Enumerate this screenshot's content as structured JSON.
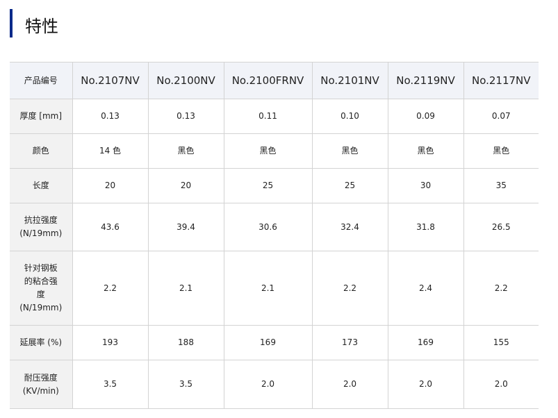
{
  "section": {
    "title": "特性"
  },
  "table": {
    "header": [
      "产品编号",
      "No.2107NV",
      "No.2100NV",
      "No.2100FRNV",
      "No.2101NV",
      "No.2119NV",
      "No.2117NV"
    ],
    "rows": [
      {
        "label": [
          "厚度 [mm]"
        ],
        "values": [
          "0.13",
          "0.13",
          "0.11",
          "0.10",
          "0.09",
          "0.07"
        ]
      },
      {
        "label": [
          "颜色"
        ],
        "values": [
          "14 色",
          "黑色",
          "黑色",
          "黑色",
          "黑色",
          "黑色"
        ]
      },
      {
        "label": [
          "长度"
        ],
        "values": [
          "20",
          "20",
          "25",
          "25",
          "30",
          "35"
        ]
      },
      {
        "label": [
          "抗拉强度",
          "(N/19mm)"
        ],
        "values": [
          "43.6",
          "39.4",
          "30.6",
          "32.4",
          "31.8",
          "26.5"
        ]
      },
      {
        "label": [
          "针对钢板",
          "的粘合强",
          "度",
          "(N/19mm)"
        ],
        "values": [
          "2.2",
          "2.1",
          "2.1",
          "2.2",
          "2.4",
          "2.2"
        ]
      },
      {
        "label": [
          "延展率 (%)"
        ],
        "values": [
          "193",
          "188",
          "169",
          "173",
          "169",
          "155"
        ]
      },
      {
        "label": [
          "耐压强度",
          "(KV/min)"
        ],
        "values": [
          "3.5",
          "3.5",
          "2.0",
          "2.0",
          "2.0",
          "2.0"
        ]
      }
    ]
  }
}
